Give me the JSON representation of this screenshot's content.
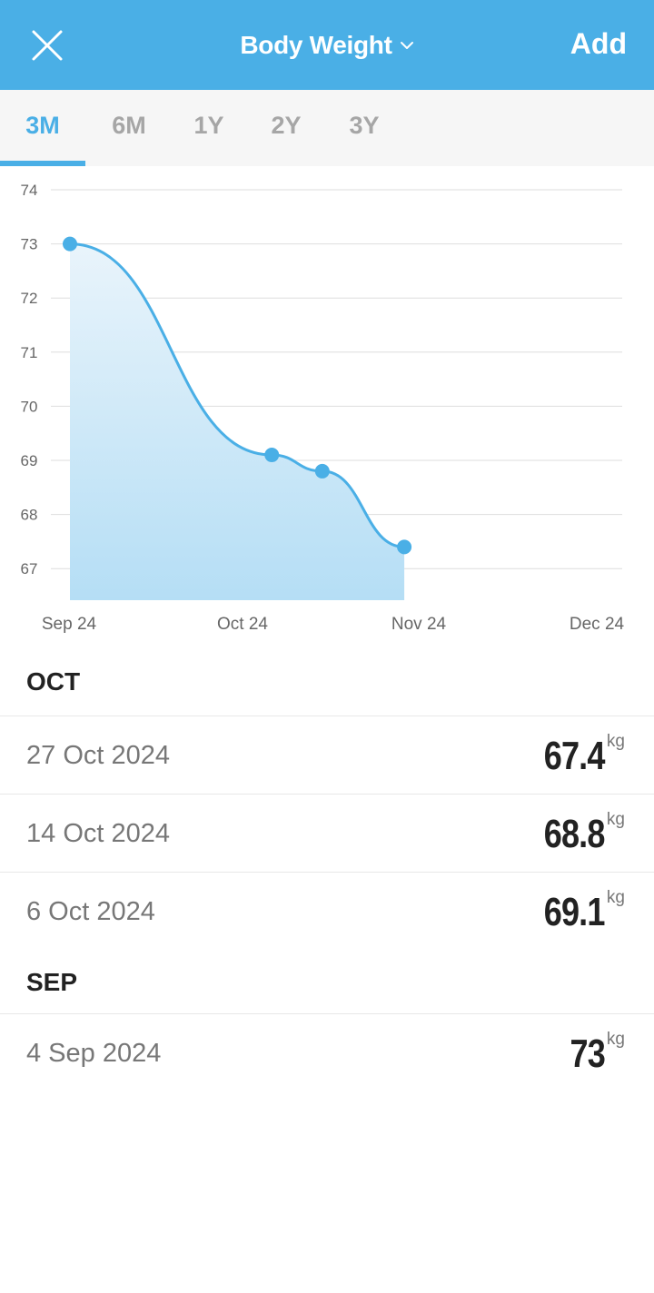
{
  "header": {
    "title": "Body Weight",
    "add_label": "Add",
    "close_icon": "close-icon",
    "dropdown_icon": "chevron-down-icon",
    "bg_color": "#4aafe6"
  },
  "tabs": [
    {
      "label": "3M",
      "active": true
    },
    {
      "label": "6M",
      "active": false
    },
    {
      "label": "1Y",
      "active": false
    },
    {
      "label": "2Y",
      "active": false
    },
    {
      "label": "3Y",
      "active": false
    }
  ],
  "chart_data": {
    "type": "area",
    "x_tick_labels": [
      "Sep 24",
      "Oct 24",
      "Nov 24",
      "Dec 24"
    ],
    "y_tick_labels": [
      "74",
      "73",
      "72",
      "71",
      "70",
      "69",
      "68",
      "67"
    ],
    "ylim": [
      67,
      74
    ],
    "grid": true,
    "series": [
      {
        "points": [
          {
            "date": "2024-09-04",
            "value": 73
          },
          {
            "date": "2024-10-06",
            "value": 69.1
          },
          {
            "date": "2024-10-14",
            "value": 68.8
          },
          {
            "date": "2024-10-27",
            "value": 67.4
          }
        ]
      }
    ],
    "line_color": "#4aafe6"
  },
  "sections": [
    {
      "title": "OCT",
      "entries": [
        {
          "date": "27 Oct 2024",
          "value": "67.4",
          "unit": "kg"
        },
        {
          "date": "14 Oct 2024",
          "value": "68.8",
          "unit": "kg"
        },
        {
          "date": "6 Oct 2024",
          "value": "69.1",
          "unit": "kg"
        }
      ]
    },
    {
      "title": "SEP",
      "entries": [
        {
          "date": "4 Sep 2024",
          "value": "73",
          "unit": "kg"
        }
      ]
    }
  ]
}
